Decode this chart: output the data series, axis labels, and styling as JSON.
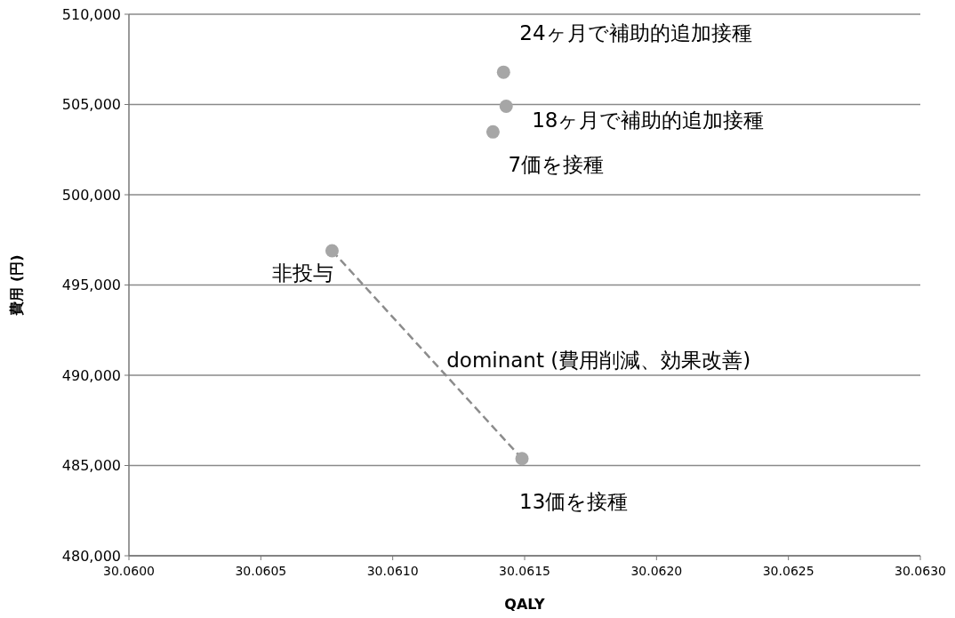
{
  "chart_data": {
    "type": "scatter",
    "xlabel": "QALY",
    "ylabel": "費用 (円)",
    "xlim": [
      30.06,
      30.063
    ],
    "xticks": [
      {
        "value": 30.06,
        "label": "30.0600"
      },
      {
        "value": 30.0605,
        "label": "30.0605"
      },
      {
        "value": 30.061,
        "label": "30.0610"
      },
      {
        "value": 30.0615,
        "label": "30.0615"
      },
      {
        "value": 30.062,
        "label": "30.0620"
      },
      {
        "value": 30.0625,
        "label": "30.0625"
      },
      {
        "value": 30.063,
        "label": "30.0630"
      }
    ],
    "ylim": [
      480000,
      510000
    ],
    "yticks": [
      {
        "value": 480000,
        "label": "480,000"
      },
      {
        "value": 485000,
        "label": "485,000"
      },
      {
        "value": 490000,
        "label": "490,000"
      },
      {
        "value": 495000,
        "label": "495,000"
      },
      {
        "value": 500000,
        "label": "500,000"
      },
      {
        "value": 505000,
        "label": "505,000"
      },
      {
        "value": 510000,
        "label": "510,000"
      }
    ],
    "grid": "y",
    "marker": "circle",
    "series": [
      {
        "type": "line",
        "color": "#8c8c8c",
        "line_style": "dashed",
        "marker": "none",
        "x": [
          30.06077,
          30.06149
        ],
        "values": [
          496900,
          485380
        ]
      },
      {
        "color": "#a6a6a6",
        "x": [
          30.06142,
          30.06143,
          30.06138,
          30.06077,
          30.06149
        ],
        "values": [
          506790,
          504900,
          503480,
          496900,
          485380
        ]
      }
    ],
    "annotations": [
      {
        "text": "24ヶ月で補助的追加接種",
        "x": 30.06142,
        "y": 506790
      },
      {
        "text": "18ヶ月で補助的追加接種",
        "x": 30.06143,
        "y": 504900
      },
      {
        "text": "7価を接種",
        "x": 30.06138,
        "y": 503480
      },
      {
        "text": "非投与",
        "x": 30.06077,
        "y": 496900
      },
      {
        "text": "13価を接種",
        "x": 30.06149,
        "y": 485380
      },
      {
        "text": "dominant (費用削減、効果改善)",
        "x": 30.06113,
        "y": 491140
      }
    ]
  }
}
